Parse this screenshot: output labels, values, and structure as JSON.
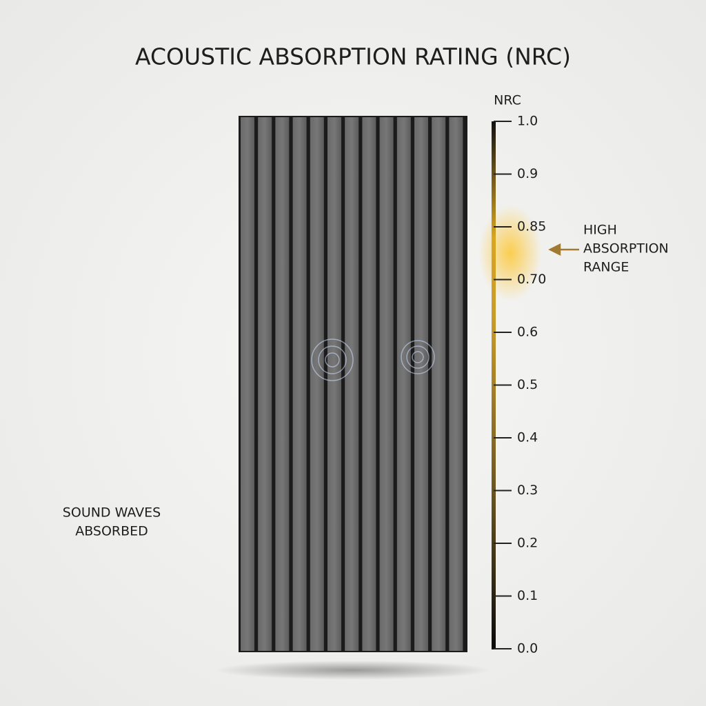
{
  "title": "ACOUSTIC ABSORPTION RATING (NRC)",
  "scale": {
    "label": "NRC",
    "ticks": [
      {
        "value": 1,
        "label": "1.0"
      },
      0.9,
      0.85,
      {
        "value": 0.7,
        "label": "0.70"
      },
      0.6,
      0.5,
      0.4,
      0.3,
      0.2,
      0.1,
      {
        "value": 0,
        "label": "0.0"
      }
    ],
    "highlight": {
      "lines": [
        "HIGH",
        "ABSORPTION",
        "RANGE"
      ]
    }
  },
  "wave_caption": {
    "lines": [
      "SOUND WAVES",
      "ABSORBED"
    ]
  }
}
